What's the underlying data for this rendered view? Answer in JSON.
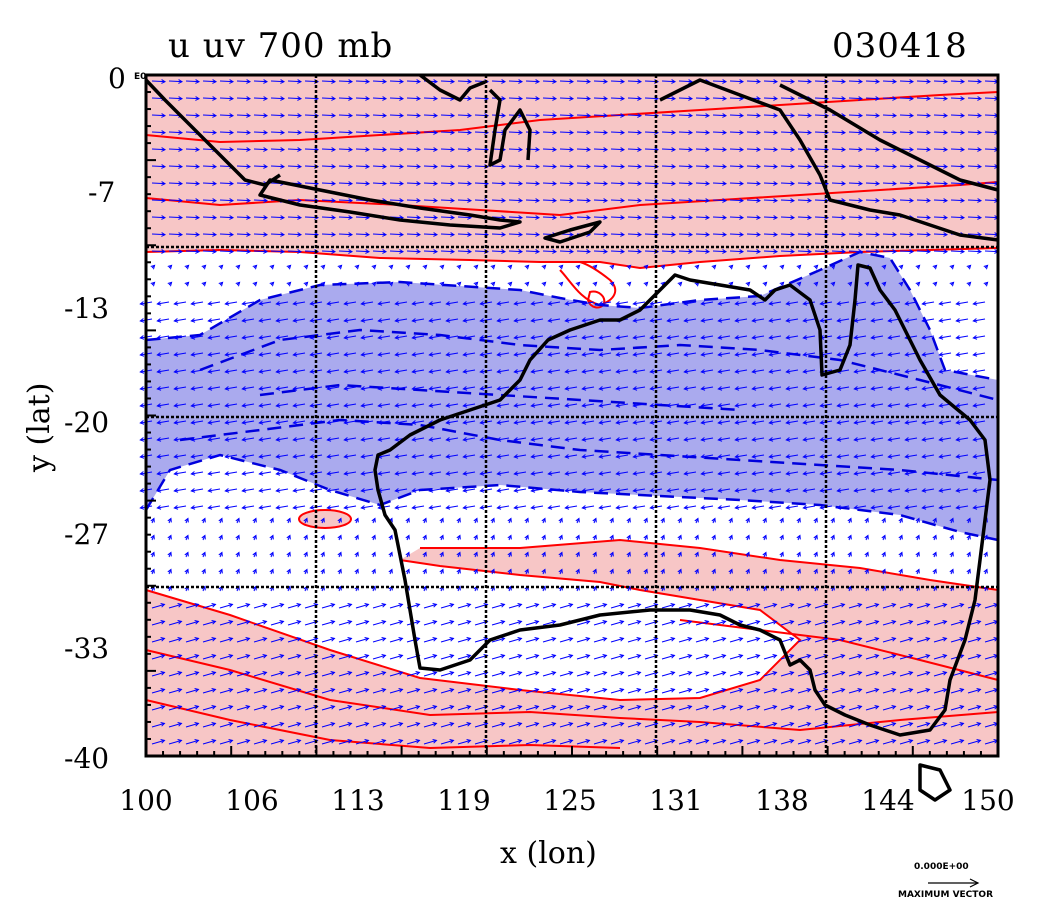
{
  "title_left": "u uv 700 mb",
  "title_right": "030418",
  "corner_label": "E0",
  "x_axis_label": "x (lon)",
  "y_axis_label": "y (lat)",
  "x_ticks": [
    "100",
    "106",
    "113",
    "119",
    "125",
    "131",
    "138",
    "144",
    "150"
  ],
  "y_ticks": [
    "0",
    "-7",
    "-13",
    "-20",
    "-27",
    "-33",
    "-40"
  ],
  "scale_vector_value": "0.000E+00",
  "scale_vector_label": "MAXIMUM VECTOR",
  "colors": {
    "positive_fill": "#f7c6c6",
    "positive_contour": "#ff0000",
    "negative_fill": "#aaaaee",
    "negative_contour": "#0000dd",
    "vector": "#0000ff",
    "coast": "#000000",
    "grid": "#000000"
  },
  "chart_data": {
    "type": "map-contour-vector",
    "field": "u wind and uv vectors at 700 mb",
    "date_code": "030418",
    "xlim": [
      100,
      150
    ],
    "ylim": [
      -40,
      0
    ],
    "grid_lon": [
      110,
      120,
      130,
      140
    ],
    "grid_lat": [
      -10,
      -20,
      -30
    ],
    "positive_u_bands_lat": [
      [
        -10,
        0
      ],
      [
        -31,
        -40
      ]
    ],
    "negative_u_band_lat": [
      -12,
      -26
    ],
    "vector_flow": "westerly in north and south bands, easterly in central band"
  }
}
